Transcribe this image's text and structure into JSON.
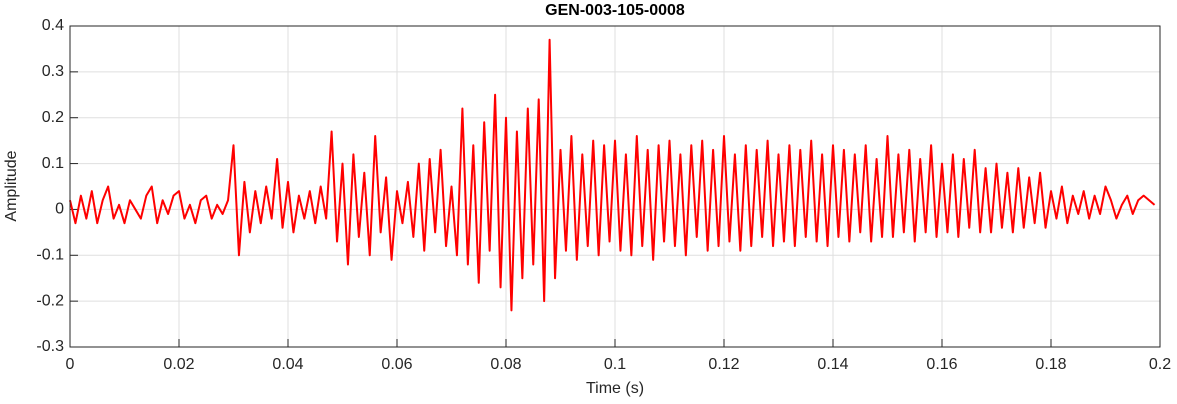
{
  "chart_data": {
    "type": "line",
    "title": "GEN-003-105-0008",
    "x_label": "Time (s)",
    "y_label": "Amplitude",
    "xlim": [
      0,
      0.2
    ],
    "xticks": [
      0,
      0.02,
      0.04,
      0.06,
      0.08,
      0.1,
      0.12,
      0.14,
      0.16,
      0.18,
      0.2
    ],
    "ylim": [
      -0.3,
      0.4
    ],
    "yticks": [
      -0.3,
      -0.2,
      -0.1,
      0,
      0.1,
      0.2,
      0.3,
      0.4
    ],
    "grid": true,
    "x": [
      0,
      0.001,
      0.002,
      0.003,
      0.004,
      0.005,
      0.006,
      0.007,
      0.008,
      0.009,
      0.01,
      0.011,
      0.012,
      0.013,
      0.014,
      0.015,
      0.016,
      0.017,
      0.018,
      0.019,
      0.02,
      0.021,
      0.022,
      0.023,
      0.024,
      0.025,
      0.026,
      0.027,
      0.028,
      0.029,
      0.03,
      0.031,
      0.032,
      0.033,
      0.034,
      0.035,
      0.036,
      0.037,
      0.038,
      0.039,
      0.04,
      0.041,
      0.042,
      0.043,
      0.044,
      0.045,
      0.046,
      0.047,
      0.048,
      0.049,
      0.05,
      0.051,
      0.052,
      0.053,
      0.054,
      0.055,
      0.056,
      0.057,
      0.058,
      0.059,
      0.06,
      0.061,
      0.062,
      0.063,
      0.064,
      0.065,
      0.066,
      0.067,
      0.068,
      0.069,
      0.07,
      0.071,
      0.072,
      0.073,
      0.074,
      0.075,
      0.076,
      0.077,
      0.078,
      0.079,
      0.08,
      0.081,
      0.082,
      0.083,
      0.084,
      0.085,
      0.086,
      0.087,
      0.088,
      0.089,
      0.09,
      0.091,
      0.092,
      0.093,
      0.094,
      0.095,
      0.096,
      0.097,
      0.098,
      0.099,
      0.1,
      0.101,
      0.102,
      0.103,
      0.104,
      0.105,
      0.106,
      0.107,
      0.108,
      0.109,
      0.11,
      0.111,
      0.112,
      0.113,
      0.114,
      0.115,
      0.116,
      0.117,
      0.118,
      0.119,
      0.12,
      0.121,
      0.122,
      0.123,
      0.124,
      0.125,
      0.126,
      0.127,
      0.128,
      0.129,
      0.13,
      0.131,
      0.132,
      0.133,
      0.134,
      0.135,
      0.136,
      0.137,
      0.138,
      0.139,
      0.14,
      0.141,
      0.142,
      0.143,
      0.144,
      0.145,
      0.146,
      0.147,
      0.148,
      0.149,
      0.15,
      0.151,
      0.152,
      0.153,
      0.154,
      0.155,
      0.156,
      0.157,
      0.158,
      0.159,
      0.16,
      0.161,
      0.162,
      0.163,
      0.164,
      0.165,
      0.166,
      0.167,
      0.168,
      0.169,
      0.17,
      0.171,
      0.172,
      0.173,
      0.174,
      0.175,
      0.176,
      0.177,
      0.178,
      0.179,
      0.18,
      0.181,
      0.182,
      0.183,
      0.184,
      0.185,
      0.186,
      0.187,
      0.188,
      0.189,
      0.19,
      0.191,
      0.192,
      0.193,
      0.194,
      0.195,
      0.196,
      0.197,
      0.198,
      0.199
    ],
    "series": [
      {
        "color": "#ff0000",
        "values": [
          0.02,
          -0.03,
          0.03,
          -0.02,
          0.04,
          -0.03,
          0.02,
          0.05,
          -0.02,
          0.01,
          -0.03,
          0.02,
          0.0,
          -0.02,
          0.03,
          0.05,
          -0.03,
          0.02,
          -0.01,
          0.03,
          0.04,
          -0.02,
          0.01,
          -0.03,
          0.02,
          0.03,
          -0.02,
          0.01,
          -0.01,
          0.02,
          0.14,
          -0.1,
          0.06,
          -0.05,
          0.04,
          -0.03,
          0.05,
          -0.02,
          0.11,
          -0.04,
          0.06,
          -0.05,
          0.03,
          -0.02,
          0.04,
          -0.03,
          0.05,
          -0.02,
          0.17,
          -0.07,
          0.1,
          -0.12,
          0.12,
          -0.06,
          0.08,
          -0.1,
          0.16,
          -0.05,
          0.07,
          -0.11,
          0.04,
          -0.03,
          0.06,
          -0.06,
          0.1,
          -0.09,
          0.11,
          -0.05,
          0.13,
          -0.08,
          0.05,
          -0.1,
          0.22,
          -0.12,
          0.14,
          -0.16,
          0.19,
          -0.09,
          0.25,
          -0.17,
          0.2,
          -0.22,
          0.17,
          -0.15,
          0.22,
          -0.12,
          0.24,
          -0.2,
          0.37,
          -0.15,
          0.13,
          -0.09,
          0.16,
          -0.11,
          0.12,
          -0.08,
          0.15,
          -0.1,
          0.14,
          -0.07,
          0.15,
          -0.09,
          0.12,
          -0.1,
          0.16,
          -0.08,
          0.13,
          -0.11,
          0.14,
          -0.07,
          0.15,
          -0.08,
          0.12,
          -0.1,
          0.14,
          -0.06,
          0.15,
          -0.09,
          0.13,
          -0.08,
          0.16,
          -0.07,
          0.12,
          -0.09,
          0.14,
          -0.08,
          0.13,
          -0.06,
          0.15,
          -0.08,
          0.12,
          -0.07,
          0.14,
          -0.08,
          0.13,
          -0.06,
          0.15,
          -0.07,
          0.12,
          -0.08,
          0.14,
          -0.06,
          0.13,
          -0.07,
          0.12,
          -0.05,
          0.14,
          -0.07,
          0.11,
          -0.06,
          0.16,
          -0.06,
          0.12,
          -0.05,
          0.13,
          -0.07,
          0.11,
          -0.05,
          0.14,
          -0.06,
          0.1,
          -0.05,
          0.12,
          -0.06,
          0.11,
          -0.04,
          0.13,
          -0.05,
          0.09,
          -0.05,
          0.1,
          -0.04,
          0.08,
          -0.05,
          0.09,
          -0.04,
          0.07,
          -0.03,
          0.08,
          -0.04,
          0.04,
          -0.02,
          0.05,
          -0.03,
          0.03,
          -0.01,
          0.04,
          -0.02,
          0.03,
          -0.01,
          0.05,
          0.02,
          -0.02,
          0.01,
          0.03,
          -0.01,
          0.02,
          0.03,
          0.02,
          0.01
        ]
      }
    ]
  }
}
